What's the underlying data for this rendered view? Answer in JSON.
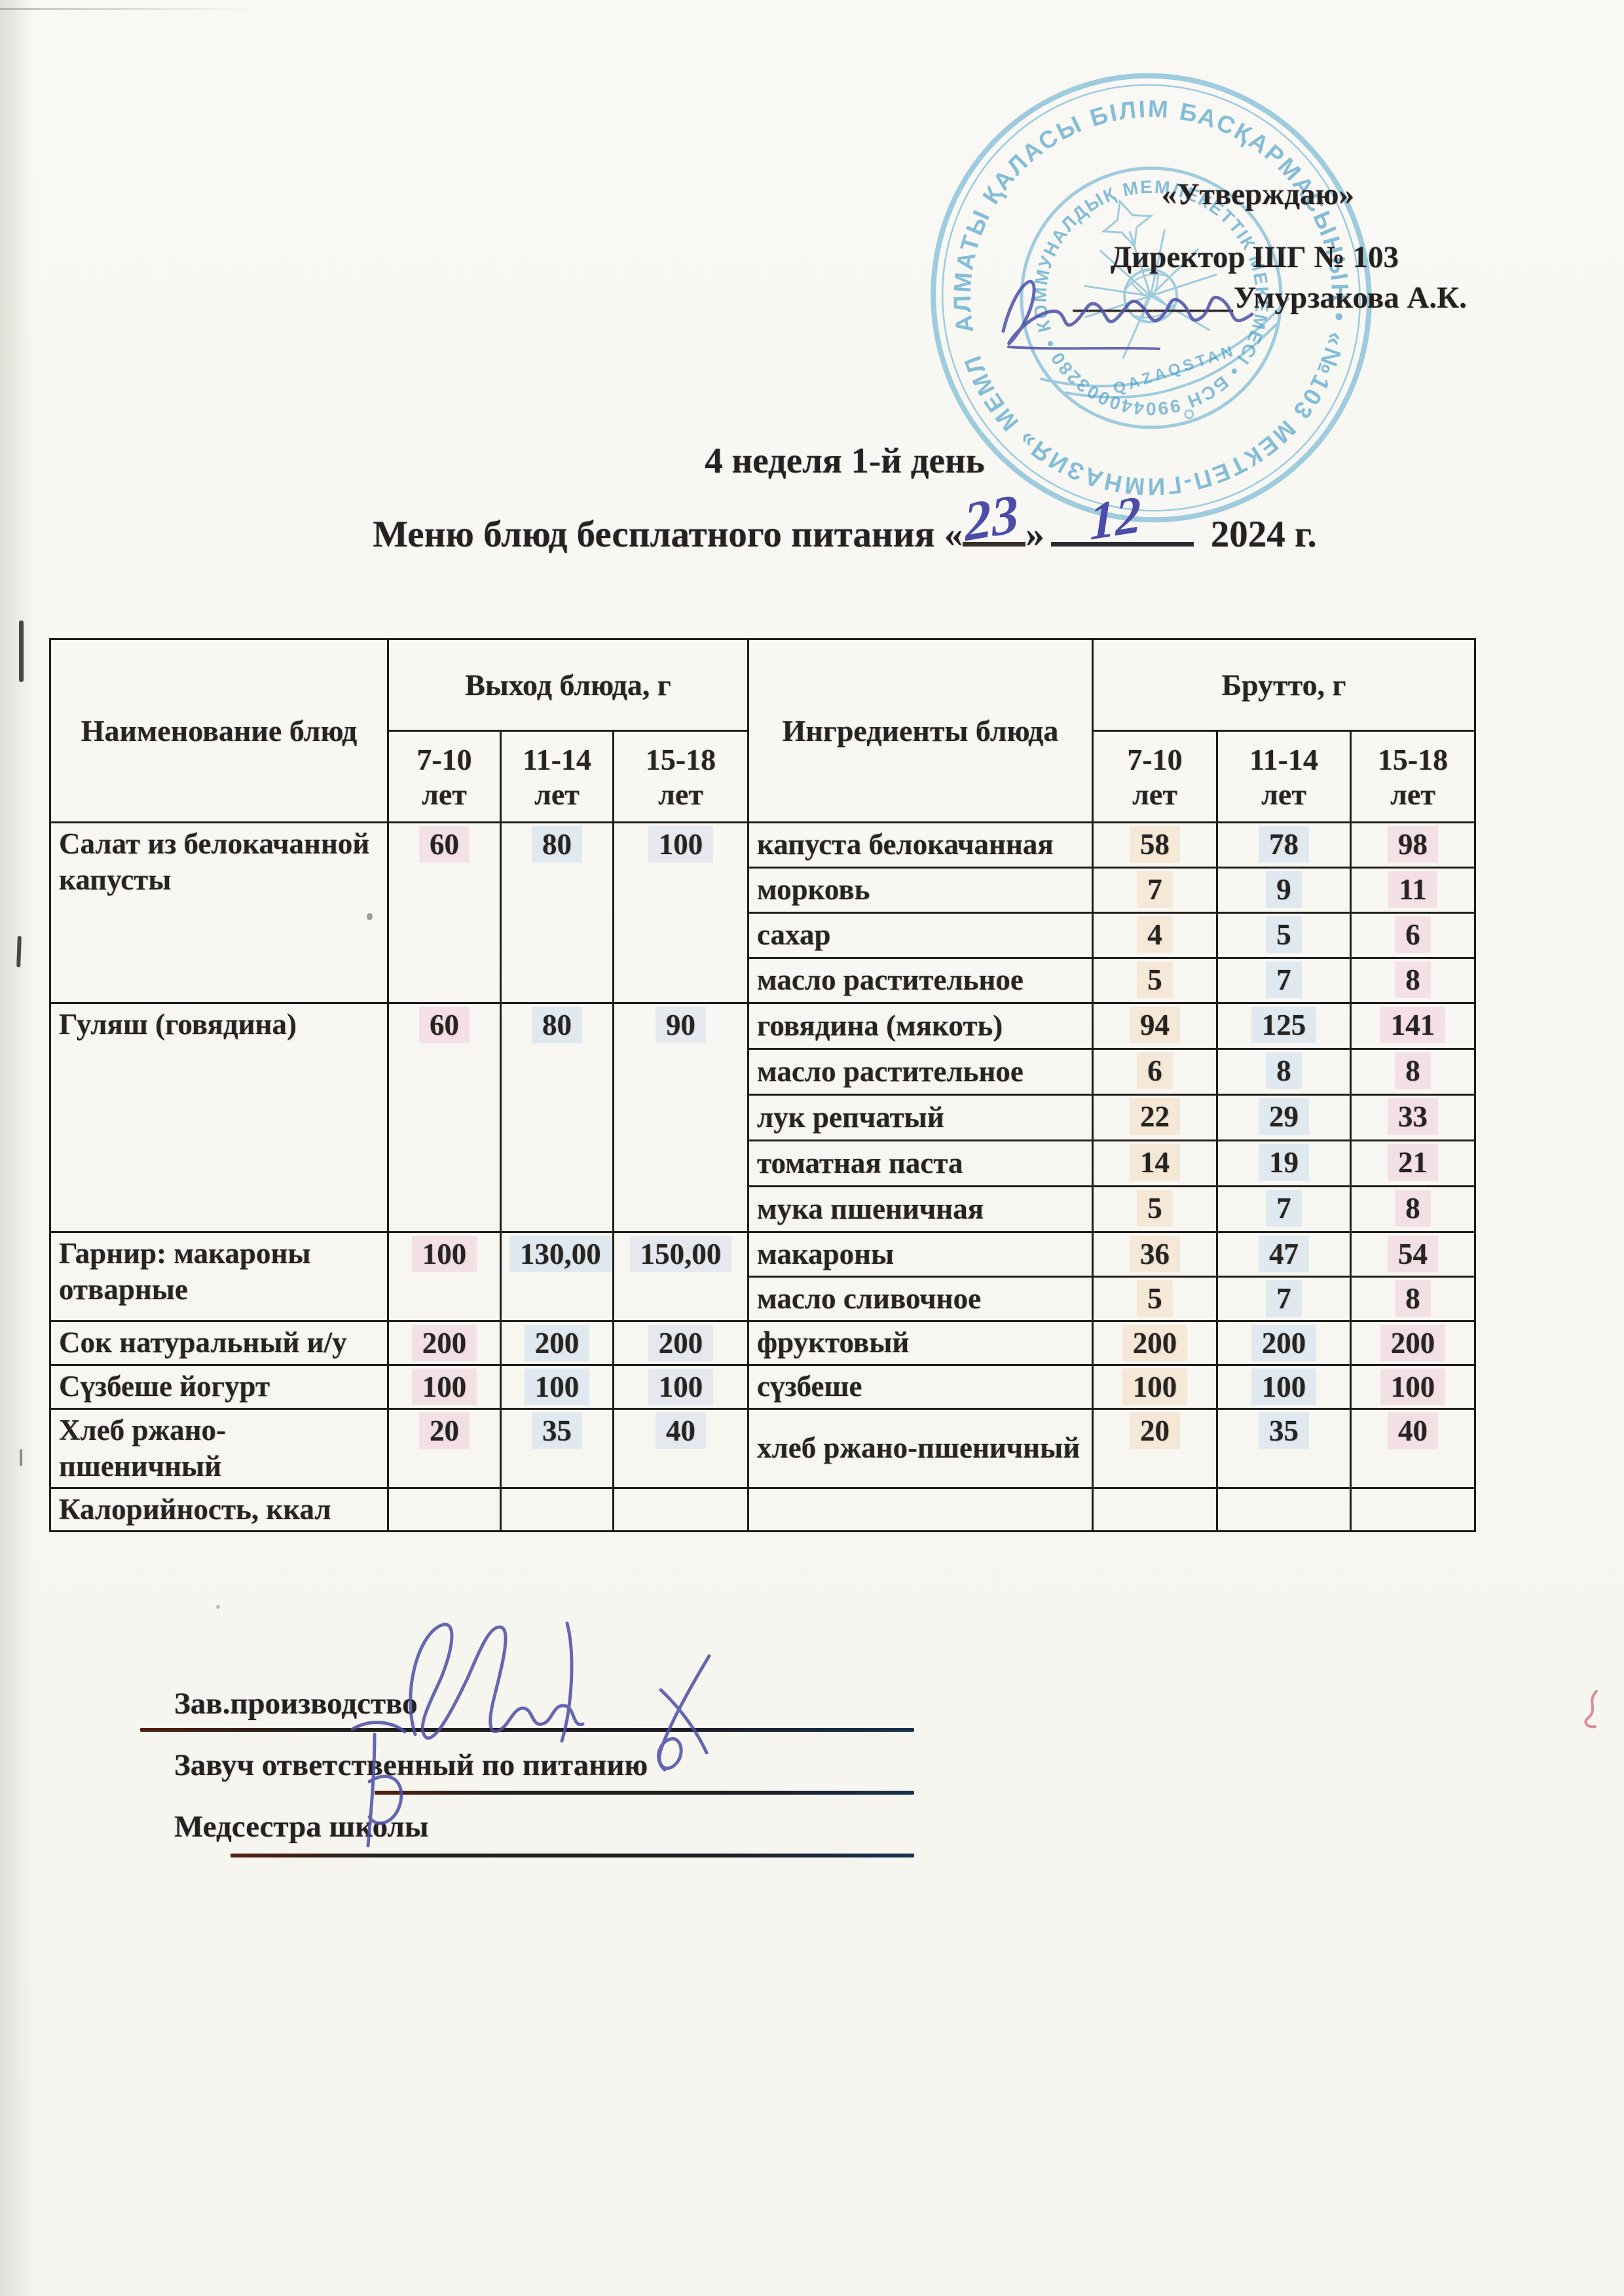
{
  "page": {
    "paper_color": "#f8f7f3",
    "ink_color": "#4b4da8",
    "stamp_color": "#46a0c9",
    "text_color": "#242220"
  },
  "approval": {
    "approve_label": "«Утверждаю»",
    "director_title": "Директор ШГ № 103",
    "signature_underscores": "__________",
    "director_name": "Умурзакова А.К."
  },
  "stamp": {
    "outer_text": "АЛМАТЫ ҚАЛАСЫ БІЛІМ БАСҚАРМАСЫНЫҢ  •  «№103 МЕКТЕП-ГИМНАЗИЯ» МЕМЛЕКЕТТІК  •",
    "inner_text": "КОММУНАЛДЫҚ МЕМЛЕКЕТТІК МЕКЕМЕСІ • БСН 990440003280 •",
    "emblem_text": "QAZAQSTAN"
  },
  "title": {
    "week_line": "4 неделя 1-й день",
    "menu_prefix": "Меню блюд бесплатного питания «",
    "menu_day": "23",
    "menu_close": "»",
    "menu_month": "12",
    "menu_year": "2024 г."
  },
  "table": {
    "col_name": "Наименование блюд",
    "col_out": "Выход блюда, г",
    "col_ingredients": "Ингредиенты блюда",
    "col_brutto": "Брутто, г",
    "age_groups": [
      "7-10 лет",
      "11-14 лет",
      "15-18 лет"
    ],
    "dishes": [
      {
        "name": "Салат из белокачанной капусты",
        "out": [
          "60",
          "80",
          "100"
        ],
        "ingredients": [
          {
            "name": "капуста белокачанная",
            "brutto": [
              "58",
              "78",
              "98"
            ]
          },
          {
            "name": "морковь",
            "brutto": [
              "7",
              "9",
              "11"
            ]
          },
          {
            "name": "сахар",
            "brutto": [
              "4",
              "5",
              "6"
            ]
          },
          {
            "name": "масло растительное",
            "brutto": [
              "5",
              "7",
              "8"
            ]
          }
        ]
      },
      {
        "name": "Гуляш (говядина)",
        "out": [
          "60",
          "80",
          "90"
        ],
        "ingredients": [
          {
            "name": "говядина (мякоть)",
            "brutto": [
              "94",
              "125",
              "141"
            ]
          },
          {
            "name": "масло растительное",
            "brutto": [
              "6",
              "8",
              "8"
            ]
          },
          {
            "name": "лук репчатый",
            "brutto": [
              "22",
              "29",
              "33"
            ]
          },
          {
            "name": "томатная паста",
            "brutto": [
              "14",
              "19",
              "21"
            ]
          },
          {
            "name": "мука пшеничная",
            "brutto": [
              "5",
              "7",
              "8"
            ]
          }
        ]
      },
      {
        "name": "Гарнир: макароны отварные",
        "out": [
          "100",
          "130,00",
          "150,00"
        ],
        "ingredients": [
          {
            "name": "макароны",
            "brutto": [
              "36",
              "47",
              "54"
            ]
          },
          {
            "name": "масло сливочное",
            "brutto": [
              "5",
              "7",
              "8"
            ]
          }
        ]
      },
      {
        "name": "Сок натуральный и/у",
        "out": [
          "200",
          "200",
          "200"
        ],
        "ingredients": [
          {
            "name": "фруктовый",
            "brutto": [
              "200",
              "200",
              "200"
            ]
          }
        ]
      },
      {
        "name": "Сүзбеше йогурт",
        "out": [
          "100",
          "100",
          "100"
        ],
        "ingredients": [
          {
            "name": "сүзбеше",
            "brutto": [
              "100",
              "100",
              "100"
            ]
          }
        ]
      },
      {
        "name": "Хлеб ржано-пшеничный",
        "out": [
          "20",
          "35",
          "40"
        ],
        "ingredients": [
          {
            "name": "хлеб ржано-пшеничный",
            "brutto": [
              "20",
              "35",
              "40"
            ]
          }
        ]
      },
      {
        "name": "Калорийность, ккал",
        "out": [
          "",
          "",
          ""
        ],
        "ingredients": [
          {
            "name": "",
            "brutto": [
              "",
              "",
              ""
            ]
          }
        ]
      }
    ]
  },
  "signatures": [
    {
      "label": "Зав.производство"
    },
    {
      "label": "Завуч ответственный по питанию"
    },
    {
      "label": "Медсестра школы"
    }
  ]
}
